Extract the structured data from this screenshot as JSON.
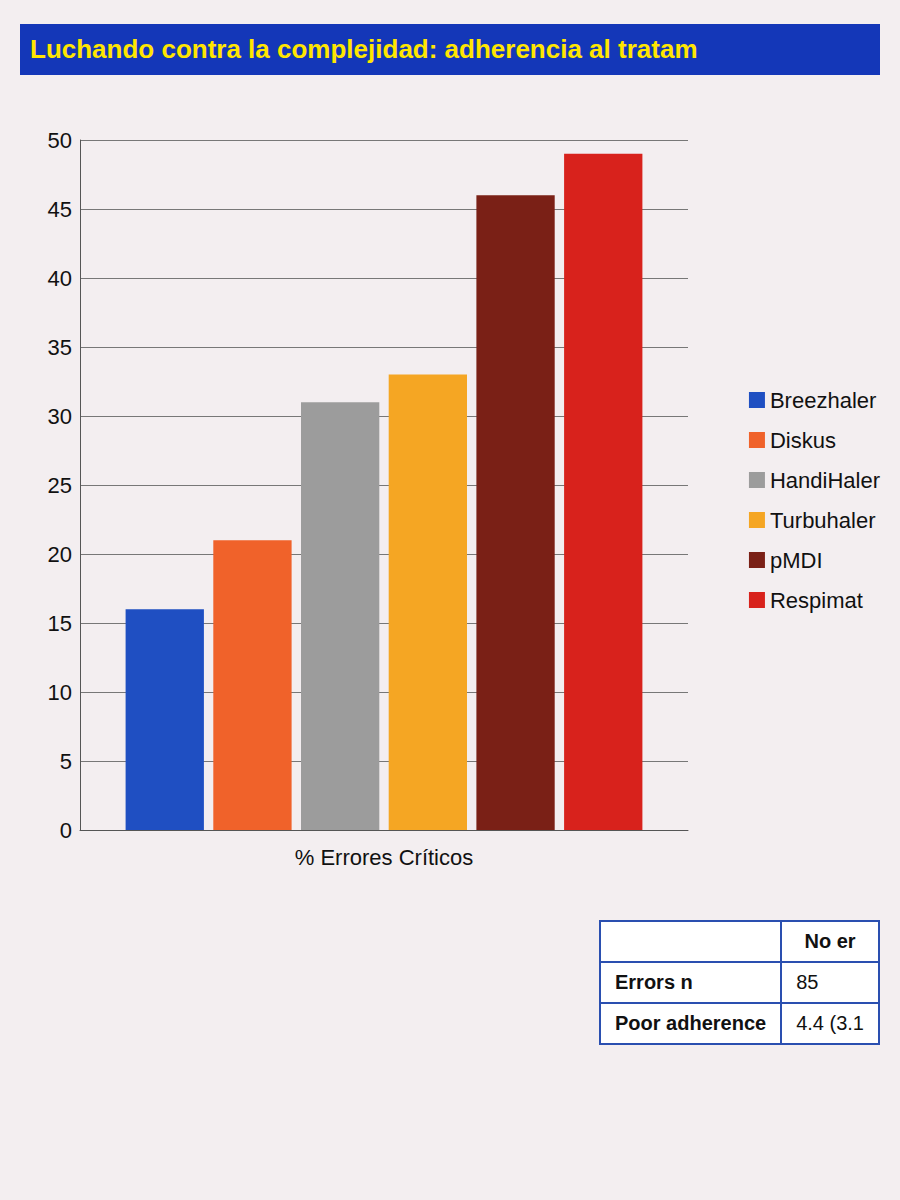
{
  "chart_data": {
    "type": "bar",
    "title": "Luchando contra la complejidad: adherencia al tratam",
    "categories": [
      "% Errores Críticos"
    ],
    "series": [
      {
        "name": "Breezhaler",
        "color": "#1f4fc2",
        "values": [
          16
        ]
      },
      {
        "name": "Diskus",
        "color": "#f0622a",
        "values": [
          21
        ]
      },
      {
        "name": "HandiHaler",
        "color": "#9c9c9c",
        "values": [
          31
        ]
      },
      {
        "name": "Turbuhaler",
        "color": "#f5a623",
        "values": [
          33
        ]
      },
      {
        "name": "pMDI",
        "color": "#7a2016",
        "values": [
          46
        ]
      },
      {
        "name": "Respimat",
        "color": "#d8221c",
        "values": [
          49
        ]
      }
    ],
    "ylim": [
      0,
      50
    ],
    "yticks": [
      0,
      5,
      10,
      15,
      20,
      25,
      30,
      35,
      40,
      45,
      50
    ],
    "grid": true,
    "legend": "right"
  },
  "table": {
    "header": [
      "",
      "No er"
    ],
    "rows": [
      [
        "Errors n",
        "85"
      ],
      [
        "Poor adherence",
        "4.4 (3.1"
      ]
    ]
  }
}
